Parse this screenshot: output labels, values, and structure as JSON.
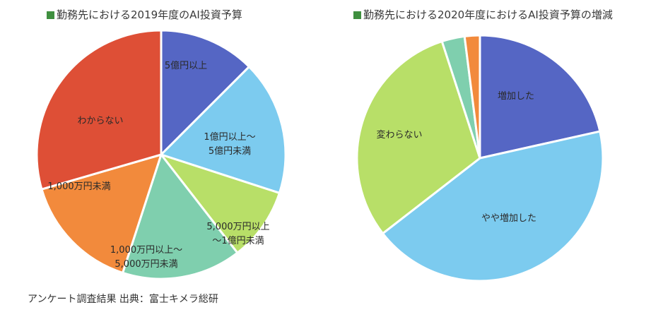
{
  "colors": {
    "title_marker": "#3f8f3f",
    "blue": "#5566c4",
    "light_blue": "#7ccbef",
    "lime": "#b8df68",
    "mint": "#7fcfae",
    "orange": "#f28a3c",
    "red": "#de4f36"
  },
  "chart_data": [
    {
      "type": "pie",
      "title": "勤務先における2019年度のAI投資予算",
      "slices": [
        {
          "label": "5億円以上",
          "value": 12.5,
          "color": "#5566c4"
        },
        {
          "label": "1億円以上～5億円未満",
          "value": 17.5,
          "color": "#7ccbef"
        },
        {
          "label": "5,000万円以上～1億円未満",
          "value": 9.5,
          "color": "#b8df68"
        },
        {
          "label": "1,000万円以上～5,000万円未満",
          "value": 15.5,
          "color": "#7fcfae"
        },
        {
          "label": "1,000万円未満",
          "value": 15.5,
          "color": "#f28a3c"
        },
        {
          "label": "わからない",
          "value": 29.5,
          "color": "#de4f36"
        }
      ]
    },
    {
      "type": "pie",
      "title": "勤務先における2020年度におけるAI投資予算の増減",
      "slices": [
        {
          "label": "増加した",
          "value": 21.5,
          "color": "#5566c4"
        },
        {
          "label": "やや増加した",
          "value": 43.0,
          "color": "#7ccbef"
        },
        {
          "label": "変わらない",
          "value": 30.5,
          "color": "#b8df68"
        },
        {
          "label": "",
          "value": 3.0,
          "color": "#7fcfae"
        },
        {
          "label": "",
          "value": 2.0,
          "color": "#f28a3c"
        }
      ]
    }
  ],
  "footer": {
    "note": "アンケート調査結果 出典：富士キメラ総研"
  }
}
